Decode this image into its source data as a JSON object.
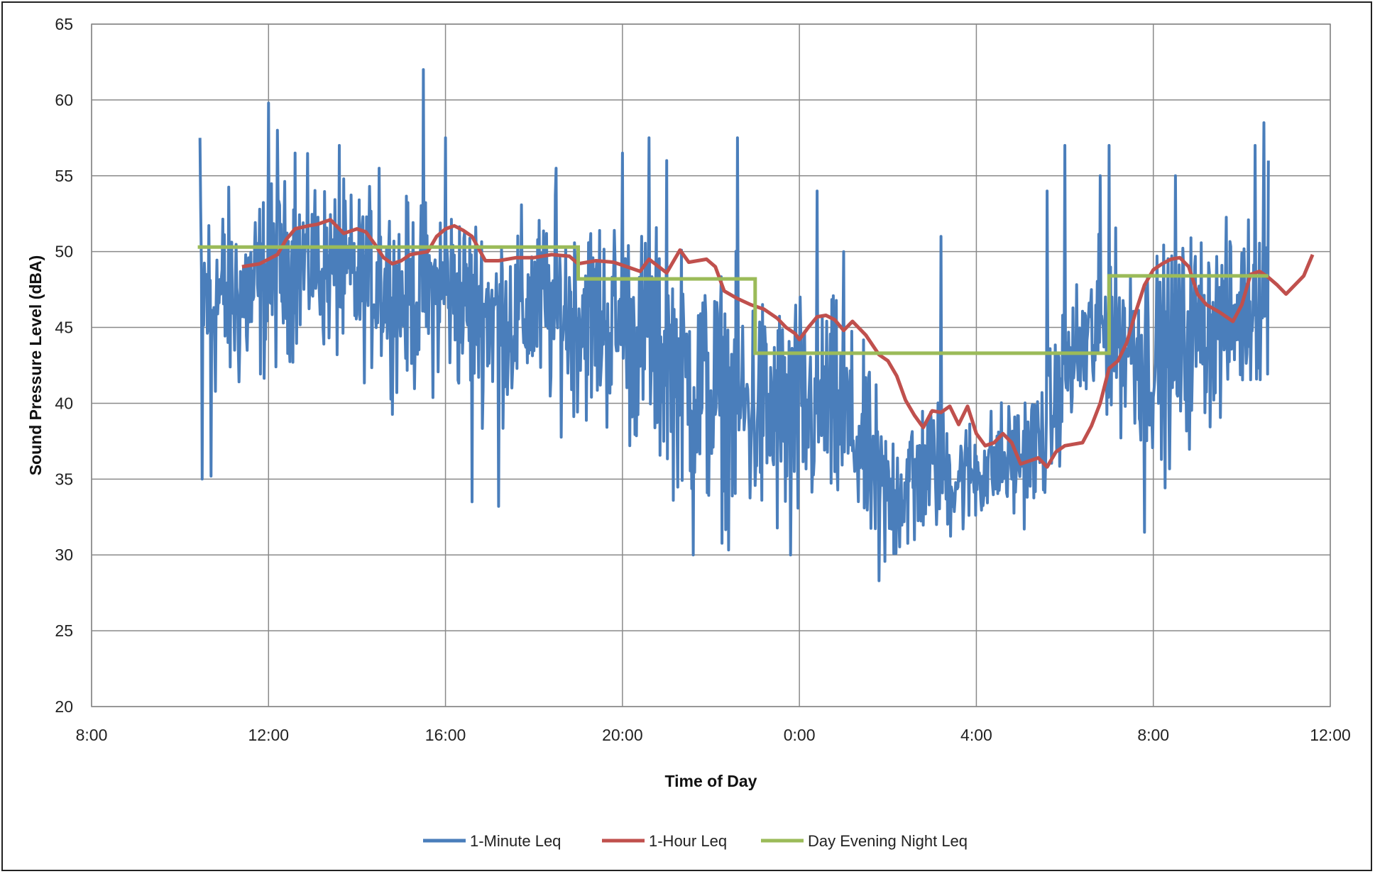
{
  "chart_data": {
    "type": "line",
    "title": "",
    "xlabel": "Time of Day",
    "ylabel": "Sound Pressure Level (dBA)",
    "x_unit": "hours since 8:00 on day 1",
    "xlim": [
      0,
      28
    ],
    "ylim": [
      20,
      65
    ],
    "x_ticks": [
      {
        "x": 0,
        "label": "8:00"
      },
      {
        "x": 4,
        "label": "12:00"
      },
      {
        "x": 8,
        "label": "16:00"
      },
      {
        "x": 12,
        "label": "20:00"
      },
      {
        "x": 16,
        "label": "0:00"
      },
      {
        "x": 20,
        "label": "4:00"
      },
      {
        "x": 24,
        "label": "8:00"
      },
      {
        "x": 28,
        "label": "12:00"
      }
    ],
    "y_ticks": [
      20,
      25,
      30,
      35,
      40,
      45,
      50,
      55,
      60,
      65
    ],
    "grid": true,
    "legend_position": "bottom",
    "series": [
      {
        "name": "1-Minute Leq",
        "color": "#4a7ebb",
        "x_start": 2.45,
        "x_end": 26.6,
        "trend": [
          [
            2.45,
            47
          ],
          [
            3.0,
            47
          ],
          [
            3.5,
            47
          ],
          [
            4.0,
            48
          ],
          [
            4.5,
            49
          ],
          [
            5.0,
            49.5
          ],
          [
            5.5,
            48.5
          ],
          [
            6.0,
            48
          ],
          [
            6.5,
            48
          ],
          [
            7.0,
            47
          ],
          [
            7.5,
            47
          ],
          [
            8.0,
            47.5
          ],
          [
            8.5,
            46.5
          ],
          [
            9.0,
            46
          ],
          [
            9.5,
            45.5
          ],
          [
            10.0,
            46.5
          ],
          [
            10.5,
            46
          ],
          [
            11.0,
            46
          ],
          [
            11.5,
            45.5
          ],
          [
            12.0,
            45
          ],
          [
            12.5,
            44
          ],
          [
            13.0,
            43
          ],
          [
            13.5,
            41.5
          ],
          [
            14.0,
            40.5
          ],
          [
            14.5,
            40
          ],
          [
            15.0,
            39.5
          ],
          [
            15.5,
            39
          ],
          [
            16.0,
            39
          ],
          [
            16.5,
            40
          ],
          [
            17.0,
            39
          ],
          [
            17.5,
            36.5
          ],
          [
            18.0,
            33.5
          ],
          [
            18.5,
            35
          ],
          [
            19.0,
            36
          ],
          [
            19.5,
            35
          ],
          [
            20.0,
            35.5
          ],
          [
            20.5,
            36
          ],
          [
            21.0,
            36.5
          ],
          [
            21.5,
            37.5
          ],
          [
            22.0,
            42
          ],
          [
            22.5,
            44
          ],
          [
            23.0,
            45
          ],
          [
            23.5,
            44
          ],
          [
            24.0,
            43
          ],
          [
            24.5,
            43
          ],
          [
            25.0,
            45
          ],
          [
            25.5,
            45
          ],
          [
            26.0,
            46
          ],
          [
            26.6,
            48
          ]
        ],
        "amplitude": [
          [
            2.45,
            8
          ],
          [
            5.0,
            6
          ],
          [
            8.0,
            7
          ],
          [
            10.0,
            7
          ],
          [
            12.0,
            8
          ],
          [
            14.0,
            9
          ],
          [
            16.0,
            9
          ],
          [
            18.0,
            6
          ],
          [
            20.0,
            4
          ],
          [
            22.0,
            5
          ],
          [
            23.5,
            7
          ],
          [
            24.5,
            8
          ],
          [
            26.0,
            6
          ],
          [
            26.6,
            7
          ]
        ],
        "extremes": [
          [
            2.45,
            57.5
          ],
          [
            2.5,
            35
          ],
          [
            2.7,
            35.2
          ],
          [
            4.0,
            59.8
          ],
          [
            4.2,
            58
          ],
          [
            4.6,
            56.5
          ],
          [
            5.6,
            57
          ],
          [
            6.5,
            55.5
          ],
          [
            7.5,
            62
          ],
          [
            8.0,
            57.5
          ],
          [
            8.6,
            33.5
          ],
          [
            9.2,
            33.2
          ],
          [
            10.5,
            55.5
          ],
          [
            12.0,
            56.5
          ],
          [
            12.6,
            57.5
          ],
          [
            13.0,
            56
          ],
          [
            13.6,
            30
          ],
          [
            14.6,
            57.5
          ],
          [
            15.8,
            30
          ],
          [
            16.4,
            54
          ],
          [
            17.0,
            50
          ],
          [
            17.8,
            28.3
          ],
          [
            18.6,
            31
          ],
          [
            19.2,
            51
          ],
          [
            19.6,
            35.5
          ],
          [
            20.8,
            35
          ],
          [
            21.6,
            54
          ],
          [
            22.0,
            57
          ],
          [
            22.8,
            55
          ],
          [
            23.0,
            57
          ],
          [
            23.8,
            31.5
          ],
          [
            24.5,
            55
          ],
          [
            26.3,
            57
          ],
          [
            26.5,
            58.5
          ],
          [
            26.6,
            56
          ]
        ]
      },
      {
        "name": "1-Hour Leq",
        "color": "#c0504d",
        "points": [
          [
            3.4,
            49.0
          ],
          [
            3.8,
            49.2
          ],
          [
            4.2,
            49.8
          ],
          [
            4.4,
            50.8
          ],
          [
            4.6,
            51.5
          ],
          [
            4.9,
            51.7
          ],
          [
            5.1,
            51.8
          ],
          [
            5.4,
            52.1
          ],
          [
            5.7,
            51.2
          ],
          [
            6.0,
            51.5
          ],
          [
            6.2,
            51.3
          ],
          [
            6.4,
            50.5
          ],
          [
            6.6,
            49.6
          ],
          [
            6.8,
            49.2
          ],
          [
            7.0,
            49.4
          ],
          [
            7.2,
            49.8
          ],
          [
            7.6,
            50.0
          ],
          [
            7.8,
            51.0
          ],
          [
            8.0,
            51.5
          ],
          [
            8.2,
            51.7
          ],
          [
            8.4,
            51.4
          ],
          [
            8.6,
            51.0
          ],
          [
            8.9,
            49.4
          ],
          [
            9.2,
            49.4
          ],
          [
            9.6,
            49.6
          ],
          [
            10.0,
            49.6
          ],
          [
            10.4,
            49.8
          ],
          [
            10.8,
            49.7
          ],
          [
            11.0,
            49.2
          ],
          [
            11.4,
            49.4
          ],
          [
            11.8,
            49.3
          ],
          [
            12.0,
            49.1
          ],
          [
            12.4,
            48.7
          ],
          [
            12.6,
            49.5
          ],
          [
            13.0,
            48.6
          ],
          [
            13.3,
            50.1
          ],
          [
            13.5,
            49.3
          ],
          [
            13.9,
            49.5
          ],
          [
            14.1,
            49.0
          ],
          [
            14.3,
            47.4
          ],
          [
            14.6,
            46.9
          ],
          [
            14.9,
            46.5
          ],
          [
            15.2,
            46.2
          ],
          [
            15.5,
            45.6
          ],
          [
            15.7,
            45.0
          ],
          [
            15.9,
            44.6
          ],
          [
            16.0,
            44.2
          ],
          [
            16.2,
            45.0
          ],
          [
            16.4,
            45.7
          ],
          [
            16.6,
            45.8
          ],
          [
            16.8,
            45.5
          ],
          [
            17.0,
            44.8
          ],
          [
            17.2,
            45.4
          ],
          [
            17.5,
            44.5
          ],
          [
            17.8,
            43.2
          ],
          [
            18.0,
            42.8
          ],
          [
            18.2,
            41.8
          ],
          [
            18.4,
            40.2
          ],
          [
            18.6,
            39.2
          ],
          [
            18.8,
            38.4
          ],
          [
            19.0,
            39.5
          ],
          [
            19.2,
            39.4
          ],
          [
            19.4,
            39.8
          ],
          [
            19.6,
            38.6
          ],
          [
            19.8,
            39.8
          ],
          [
            20.0,
            38.0
          ],
          [
            20.2,
            37.2
          ],
          [
            20.4,
            37.4
          ],
          [
            20.6,
            38.0
          ],
          [
            20.8,
            37.4
          ],
          [
            21.0,
            36.0
          ],
          [
            21.2,
            36.2
          ],
          [
            21.4,
            36.4
          ],
          [
            21.6,
            35.8
          ],
          [
            21.8,
            36.8
          ],
          [
            22.0,
            37.2
          ],
          [
            22.4,
            37.4
          ],
          [
            22.6,
            38.5
          ],
          [
            22.8,
            40.0
          ],
          [
            23.0,
            42.3
          ],
          [
            23.2,
            42.8
          ],
          [
            23.4,
            44.0
          ],
          [
            23.6,
            46.0
          ],
          [
            23.8,
            47.8
          ],
          [
            24.0,
            48.8
          ],
          [
            24.2,
            49.2
          ],
          [
            24.4,
            49.5
          ],
          [
            24.6,
            49.6
          ],
          [
            24.8,
            49.0
          ],
          [
            25.0,
            47.2
          ],
          [
            25.2,
            46.5
          ],
          [
            25.5,
            46.0
          ],
          [
            25.8,
            45.4
          ],
          [
            26.0,
            46.5
          ],
          [
            26.2,
            48.5
          ],
          [
            26.4,
            48.7
          ],
          [
            26.6,
            48.3
          ],
          [
            26.8,
            47.8
          ],
          [
            27.0,
            47.2
          ],
          [
            27.2,
            47.8
          ],
          [
            27.4,
            48.4
          ],
          [
            27.6,
            49.8
          ]
        ]
      },
      {
        "name": "Day Evening Night Leq",
        "color": "#9bbb59",
        "points": [
          [
            2.4,
            50.3
          ],
          [
            11.0,
            50.3
          ],
          [
            11.0,
            48.2
          ],
          [
            15.0,
            48.2
          ],
          [
            15.0,
            43.3
          ],
          [
            23.0,
            43.3
          ],
          [
            23.0,
            48.4
          ],
          [
            26.6,
            48.4
          ]
        ]
      }
    ]
  }
}
